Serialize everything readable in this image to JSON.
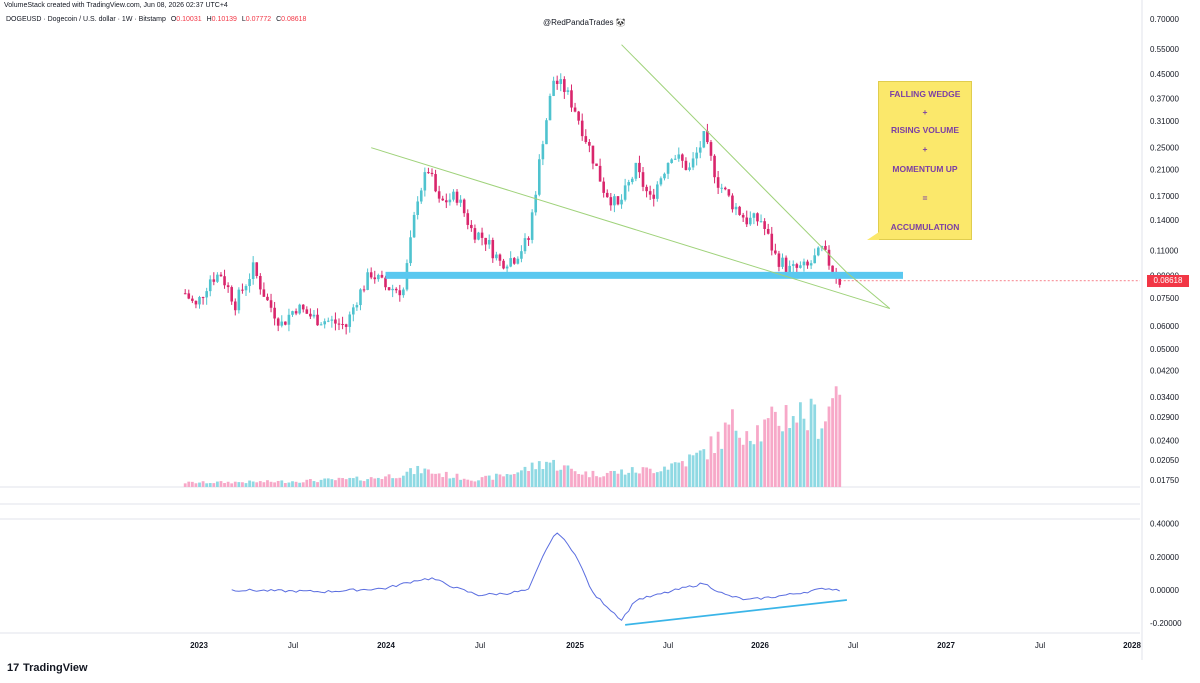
{
  "header": {
    "created_line": "VolumeStack created with TradingView.com, Jun 08, 2026 02:37 UTC+4",
    "symbol_line": "DOGEUSD · Dogecoin / U.S. dollar · 1W · Bitstamp",
    "ohlc": [
      {
        "key": "O",
        "value": "0.10031"
      },
      {
        "key": "H",
        "value": "0.10139"
      },
      {
        "key": "L",
        "value": "0.07772"
      },
      {
        "key": "C",
        "value": "0.08618"
      }
    ],
    "watermark": "@RedPandaTrades 🐼"
  },
  "annotation": {
    "lines": [
      "FALLING WEDGE",
      "+",
      "RISING VOLUME",
      "+",
      "MOMENTUM UP",
      "=",
      "ACCUMULATION"
    ]
  },
  "last_price_label": "0.08618",
  "brand": {
    "logo_mark": "17",
    "name": "TradingView"
  },
  "colors": {
    "up": "#4fc3cf",
    "down": "#d9266c",
    "volume_up": "#8fd9e3",
    "volume_down": "#f7a8c8",
    "support": "#5ac8f0",
    "wedge": "#9fd27a",
    "oscillator": "#5b6ee0",
    "divergence": "#3ab5e8",
    "callout": "#fbe86b",
    "callout_text": "#7b3fa4",
    "price_tag": "#f23645"
  },
  "chart_data": {
    "type": "candlestick",
    "scale": "log",
    "x_labels": [
      "2023",
      "Jul",
      "2024",
      "Jul",
      "2025",
      "Jul",
      "2026",
      "Jul",
      "2027",
      "Jul",
      "2028"
    ],
    "price_axis_ticks": [
      "0.70000",
      "0.55000",
      "0.45000",
      "0.37000",
      "0.31000",
      "0.25000",
      "0.21000",
      "0.17000",
      "0.14000",
      "0.11000",
      "0.09000",
      "0.07500",
      "0.06000",
      "0.05000",
      "0.04200",
      "0.03400",
      "0.02900",
      "0.02400",
      "0.02050",
      "0.01750"
    ],
    "oscillator_ticks": [
      "0.40000",
      "0.20000",
      "0.00000",
      "-0.20000"
    ],
    "price_path": [
      {
        "date": "2022-12-05",
        "close": 0.078
      },
      {
        "date": "2022-12-26",
        "close": 0.07
      },
      {
        "date": "2023-01-23",
        "close": 0.088
      },
      {
        "date": "2023-02-13",
        "close": 0.091
      },
      {
        "date": "2023-03-13",
        "close": 0.072
      },
      {
        "date": "2023-04-17",
        "close": 0.095
      },
      {
        "date": "2023-05-15",
        "close": 0.073
      },
      {
        "date": "2023-06-12",
        "close": 0.061
      },
      {
        "date": "2023-07-10",
        "close": 0.07
      },
      {
        "date": "2023-08-14",
        "close": 0.064
      },
      {
        "date": "2023-09-18",
        "close": 0.062
      },
      {
        "date": "2023-10-16",
        "close": 0.06
      },
      {
        "date": "2023-11-06",
        "close": 0.075
      },
      {
        "date": "2023-12-04",
        "close": 0.092
      },
      {
        "date": "2024-01-01",
        "close": 0.082
      },
      {
        "date": "2024-02-05",
        "close": 0.08
      },
      {
        "date": "2024-03-04",
        "close": 0.17
      },
      {
        "date": "2024-03-25",
        "close": 0.21
      },
      {
        "date": "2024-04-15",
        "close": 0.16
      },
      {
        "date": "2024-05-20",
        "close": 0.17
      },
      {
        "date": "2024-06-17",
        "close": 0.13
      },
      {
        "date": "2024-07-15",
        "close": 0.12
      },
      {
        "date": "2024-08-12",
        "close": 0.1
      },
      {
        "date": "2024-09-09",
        "close": 0.104
      },
      {
        "date": "2024-10-07",
        "close": 0.12
      },
      {
        "date": "2024-11-04",
        "close": 0.27
      },
      {
        "date": "2024-11-25",
        "close": 0.43
      },
      {
        "date": "2024-12-16",
        "close": 0.4
      },
      {
        "date": "2025-01-06",
        "close": 0.34
      },
      {
        "date": "2025-02-03",
        "close": 0.25
      },
      {
        "date": "2025-03-03",
        "close": 0.18
      },
      {
        "date": "2025-03-31",
        "close": 0.155
      },
      {
        "date": "2025-05-05",
        "close": 0.21
      },
      {
        "date": "2025-06-02",
        "close": 0.165
      },
      {
        "date": "2025-07-14",
        "close": 0.24
      },
      {
        "date": "2025-08-18",
        "close": 0.21
      },
      {
        "date": "2025-09-15",
        "close": 0.27
      },
      {
        "date": "2025-10-13",
        "close": 0.19
      },
      {
        "date": "2025-11-10",
        "close": 0.16
      },
      {
        "date": "2025-12-08",
        "close": 0.14
      },
      {
        "date": "2026-01-05",
        "close": 0.14
      },
      {
        "date": "2026-02-02",
        "close": 0.105
      },
      {
        "date": "2026-03-02",
        "close": 0.094
      },
      {
        "date": "2026-04-06",
        "close": 0.096
      },
      {
        "date": "2026-05-04",
        "close": 0.11
      },
      {
        "date": "2026-06-08",
        "close": 0.08618
      }
    ],
    "support_level": 0.09,
    "wedge_upper": [
      {
        "date": "2025-04-07",
        "price": 0.57
      },
      {
        "date": "2026-06-22",
        "price": 0.092
      }
    ],
    "wedge_lower": [
      {
        "date": "2023-12-04",
        "price": 0.25
      },
      {
        "date": "2026-09-14",
        "price": 0.069
      }
    ],
    "volume_path": [
      {
        "date": "2022-12-05",
        "value": 0.04
      },
      {
        "date": "2023-06-05",
        "value": 0.05
      },
      {
        "date": "2023-12-04",
        "value": 0.08
      },
      {
        "date": "2024-03-11",
        "value": 0.16
      },
      {
        "date": "2024-07-01",
        "value": 0.07
      },
      {
        "date": "2024-11-11",
        "value": 0.24
      },
      {
        "date": "2025-02-03",
        "value": 0.12
      },
      {
        "date": "2025-06-02",
        "value": 0.16
      },
      {
        "date": "2025-09-01",
        "value": 0.28
      },
      {
        "date": "2025-11-10",
        "value": 0.58
      },
      {
        "date": "2026-01-05",
        "value": 0.52
      },
      {
        "date": "2026-03-02",
        "value": 0.7
      },
      {
        "date": "2026-05-04",
        "value": 0.62
      },
      {
        "date": "2026-06-08",
        "value": 1.0
      }
    ],
    "oscillator_path": [
      {
        "date": "2023-03-06",
        "value": 0.0
      },
      {
        "date": "2023-09-04",
        "value": -0.01
      },
      {
        "date": "2024-01-01",
        "value": 0.01
      },
      {
        "date": "2024-03-04",
        "value": 0.06
      },
      {
        "date": "2024-04-01",
        "value": 0.07
      },
      {
        "date": "2024-05-20",
        "value": 0.01
      },
      {
        "date": "2024-07-01",
        "value": -0.03
      },
      {
        "date": "2024-08-26",
        "value": -0.02
      },
      {
        "date": "2024-10-07",
        "value": 0.0
      },
      {
        "date": "2024-11-11",
        "value": 0.25
      },
      {
        "date": "2024-12-02",
        "value": 0.35
      },
      {
        "date": "2025-01-06",
        "value": 0.22
      },
      {
        "date": "2025-02-10",
        "value": -0.02
      },
      {
        "date": "2025-03-03",
        "value": -0.08
      },
      {
        "date": "2025-04-07",
        "value": -0.18
      },
      {
        "date": "2025-05-05",
        "value": -0.06
      },
      {
        "date": "2025-06-16",
        "value": -0.03
      },
      {
        "date": "2025-08-04",
        "value": 0.01
      },
      {
        "date": "2025-09-15",
        "value": 0.04
      },
      {
        "date": "2025-10-27",
        "value": -0.03
      },
      {
        "date": "2025-12-08",
        "value": -0.06
      },
      {
        "date": "2026-02-02",
        "value": -0.04
      },
      {
        "date": "2026-04-06",
        "value": -0.01
      },
      {
        "date": "2026-05-11",
        "value": 0.01
      },
      {
        "date": "2026-06-08",
        "value": 0.0
      }
    ],
    "divergence_line": [
      {
        "date": "2025-04-14",
        "value": -0.21
      },
      {
        "date": "2026-06-22",
        "value": -0.06
      }
    ],
    "grid": false
  }
}
